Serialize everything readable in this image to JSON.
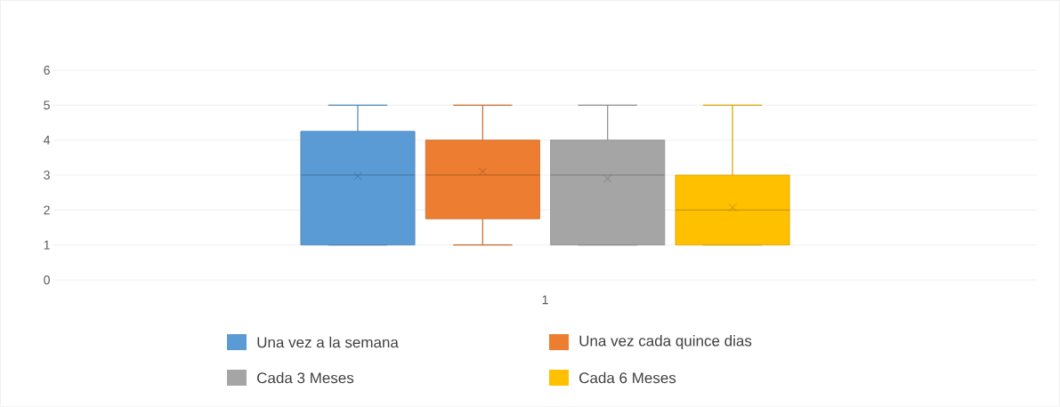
{
  "chart_data": {
    "type": "box",
    "categories": [
      "1"
    ],
    "series": [
      {
        "name": "Una vez a la semana",
        "color": "#5b9bd5",
        "boxes": [
          {
            "low": 1,
            "q1": 1,
            "median": 3,
            "q3": 4.25,
            "high": 5,
            "mean": 2.97
          }
        ]
      },
      {
        "name": "Una vez cada quince dias",
        "color": "#ed7d31",
        "boxes": [
          {
            "low": 1,
            "q1": 1.75,
            "median": 3,
            "q3": 4,
            "high": 5,
            "mean": 3.1
          }
        ]
      },
      {
        "name": "Cada 3 Meses",
        "color": "#a5a5a5",
        "boxes": [
          {
            "low": 1,
            "q1": 1,
            "median": 3,
            "q3": 4,
            "high": 5,
            "mean": 2.9
          }
        ]
      },
      {
        "name": "Cada 6 Meses",
        "color": "#ffc000",
        "boxes": [
          {
            "low": 1,
            "q1": 1,
            "median": 2,
            "q3": 3,
            "high": 5,
            "mean": 2.07
          }
        ]
      }
    ],
    "ylim": [
      0,
      6
    ],
    "yticks": [
      0,
      1,
      2,
      3,
      4,
      5,
      6
    ],
    "grid": "y",
    "legend": "bottom"
  }
}
